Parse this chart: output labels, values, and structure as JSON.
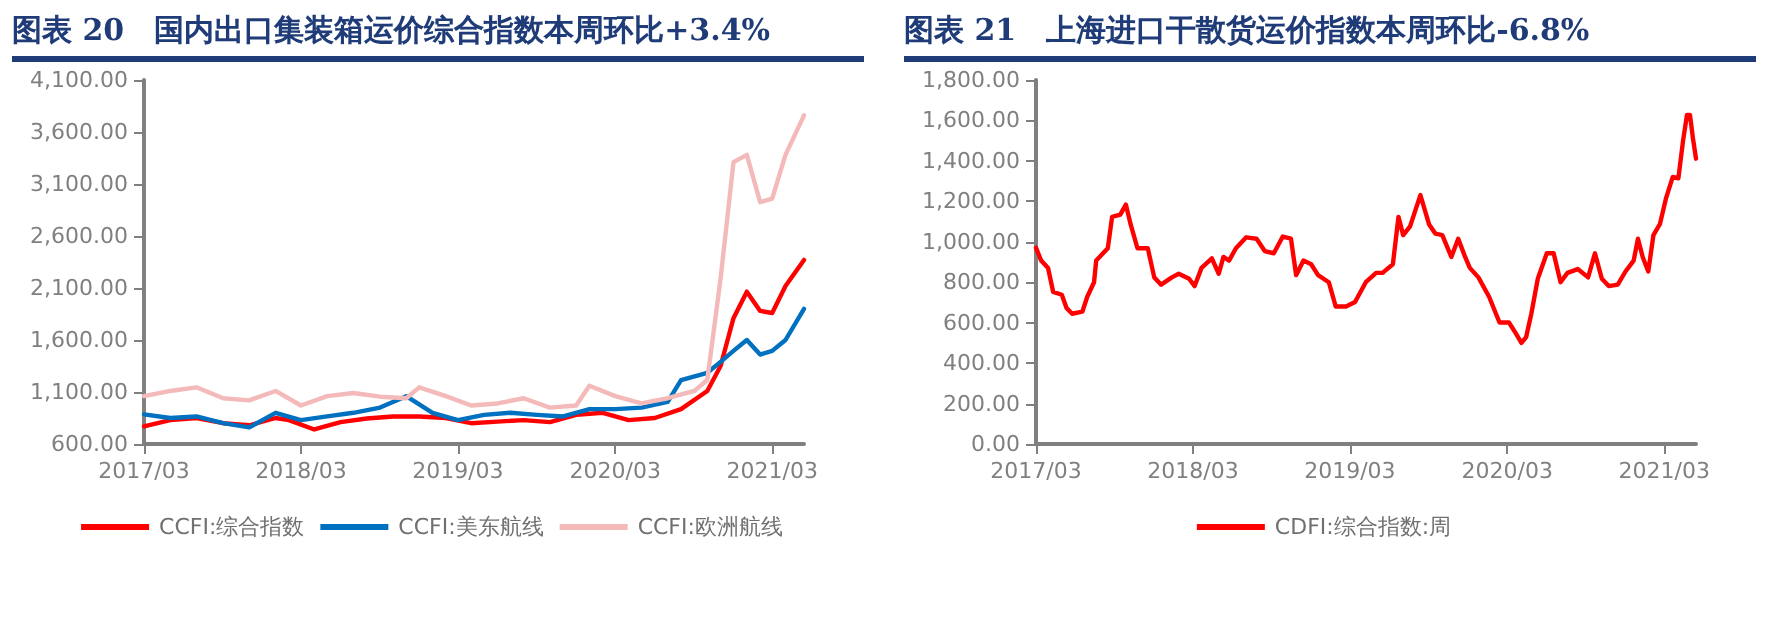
{
  "chart_data": [
    {
      "type": "line",
      "title": "图表 20　国内出口集装箱运价综合指数本周环比+3.4%",
      "legend": "bottom",
      "grid": false,
      "marker": "none",
      "line_style": "solid",
      "xlim": [
        "2017-03-01",
        "2021-05-14"
      ],
      "xticks": [
        {
          "value": "2017-03-01",
          "label": "2017/03"
        },
        {
          "value": "2018-03-01",
          "label": "2018/03"
        },
        {
          "value": "2019-03-01",
          "label": "2019/03"
        },
        {
          "value": "2020-03-01",
          "label": "2020/03"
        },
        {
          "value": "2021-03-01",
          "label": "2021/03"
        }
      ],
      "ylim": [
        600,
        4100
      ],
      "yticks": [
        {
          "value": 600,
          "label": "600.00"
        },
        {
          "value": 1100,
          "label": "1,100.00"
        },
        {
          "value": 1600,
          "label": "1,600.00"
        },
        {
          "value": 2100,
          "label": "2,100.00"
        },
        {
          "value": 2600,
          "label": "2,600.00"
        },
        {
          "value": 3100,
          "label": "3,100.00"
        },
        {
          "value": 3600,
          "label": "3,600.00"
        },
        {
          "value": 4100,
          "label": "4,100.00"
        }
      ],
      "series": [
        {
          "name": "CCFI:综合指数",
          "color": "#ff0000",
          "x": [
            "2017-03-01",
            "2017-05-01",
            "2017-07-01",
            "2017-09-01",
            "2017-11-01",
            "2018-01-01",
            "2018-02-01",
            "2018-04-01",
            "2018-06-01",
            "2018-08-01",
            "2018-10-01",
            "2018-12-01",
            "2019-02-01",
            "2019-04-01",
            "2019-06-01",
            "2019-08-01",
            "2019-10-01",
            "2019-12-01",
            "2020-02-01",
            "2020-04-01",
            "2020-06-01",
            "2020-08-01",
            "2020-10-01",
            "2020-11-01",
            "2020-12-01",
            "2021-01-01",
            "2021-02-01",
            "2021-03-01",
            "2021-04-01",
            "2021-05-14"
          ],
          "values": [
            770,
            830,
            850,
            800,
            780,
            850,
            830,
            740,
            810,
            845,
            865,
            865,
            850,
            800,
            815,
            830,
            810,
            880,
            900,
            830,
            850,
            935,
            1110,
            1350,
            1810,
            2065,
            1880,
            1860,
            2120,
            2370
          ]
        },
        {
          "name": "CCFI:美东航线",
          "color": "#0070c0",
          "x": [
            "2017-03-01",
            "2017-05-01",
            "2017-07-01",
            "2017-09-01",
            "2017-11-01",
            "2018-01-01",
            "2018-03-01",
            "2018-05-01",
            "2018-07-01",
            "2018-09-01",
            "2018-11-01",
            "2019-01-01",
            "2019-03-01",
            "2019-05-01",
            "2019-07-01",
            "2019-09-01",
            "2019-11-01",
            "2020-01-01",
            "2020-03-01",
            "2020-05-01",
            "2020-07-01",
            "2020-08-01",
            "2020-10-01",
            "2020-11-01",
            "2020-12-01",
            "2021-01-01",
            "2021-02-01",
            "2021-03-01",
            "2021-04-01",
            "2021-05-14"
          ],
          "values": [
            885,
            850,
            865,
            800,
            760,
            900,
            830,
            865,
            900,
            950,
            1060,
            900,
            830,
            880,
            900,
            880,
            865,
            935,
            935,
            950,
            1005,
            1215,
            1285,
            1390,
            1495,
            1600,
            1460,
            1495,
            1600,
            1900
          ]
        },
        {
          "name": "CCFI:欧洲航线",
          "color": "#f4b9b9",
          "x": [
            "2017-03-01",
            "2017-05-01",
            "2017-07-01",
            "2017-09-01",
            "2017-11-01",
            "2018-01-01",
            "2018-03-01",
            "2018-05-01",
            "2018-07-01",
            "2018-09-01",
            "2018-11-01",
            "2018-12-01",
            "2019-02-01",
            "2019-04-01",
            "2019-06-01",
            "2019-08-01",
            "2019-10-01",
            "2019-12-01",
            "2020-01-01",
            "2020-03-01",
            "2020-05-01",
            "2020-07-01",
            "2020-09-01",
            "2020-10-01",
            "2020-11-01",
            "2020-12-01",
            "2021-01-01",
            "2021-02-01",
            "2021-03-01",
            "2021-04-01",
            "2021-05-14"
          ],
          "values": [
            1060,
            1110,
            1145,
            1040,
            1020,
            1110,
            970,
            1060,
            1090,
            1055,
            1040,
            1145,
            1060,
            970,
            990,
            1040,
            950,
            970,
            1160,
            1060,
            990,
            1040,
            1110,
            1215,
            2190,
            3310,
            3380,
            2925,
            2960,
            3380,
            3760
          ]
        }
      ]
    },
    {
      "type": "line",
      "title": "图表 21　上海进口干散货运价指数本周环比-6.8%",
      "legend": "bottom",
      "grid": false,
      "marker": "none",
      "line_style": "solid",
      "xlim": [
        "2017-03-01",
        "2021-05-14"
      ],
      "xticks": [
        {
          "value": "2017-03-01",
          "label": "2017/03"
        },
        {
          "value": "2018-03-01",
          "label": "2018/03"
        },
        {
          "value": "2019-03-01",
          "label": "2019/03"
        },
        {
          "value": "2020-03-01",
          "label": "2020/03"
        },
        {
          "value": "2021-03-01",
          "label": "2021/03"
        }
      ],
      "ylim": [
        0,
        1800
      ],
      "yticks": [
        {
          "value": 0,
          "label": "0.00"
        },
        {
          "value": 200,
          "label": "200.00"
        },
        {
          "value": 400,
          "label": "400.00"
        },
        {
          "value": 600,
          "label": "600.00"
        },
        {
          "value": 800,
          "label": "800.00"
        },
        {
          "value": 1000,
          "label": "1,000.00"
        },
        {
          "value": 1200,
          "label": "1,200.00"
        },
        {
          "value": 1400,
          "label": "1,400.00"
        },
        {
          "value": 1600,
          "label": "1,600.00"
        },
        {
          "value": 1800,
          "label": "1,800.00"
        }
      ],
      "series": [
        {
          "name": "CDFI:综合指数:周",
          "color": "#ff0000",
          "x": [
            "2017-03-01",
            "2017-03-13",
            "2017-03-29",
            "2017-04-10",
            "2017-04-30",
            "2017-05-11",
            "2017-05-24",
            "2017-06-17",
            "2017-06-28",
            "2017-07-14",
            "2017-07-19",
            "2017-08-04",
            "2017-08-15",
            "2017-08-25",
            "2017-09-13",
            "2017-09-26",
            "2017-10-07",
            "2017-10-23",
            "2017-11-16",
            "2017-12-01",
            "2017-12-17",
            "2018-01-11",
            "2018-01-27",
            "2018-02-20",
            "2018-03-05",
            "2018-03-21",
            "2018-04-14",
            "2018-04-30",
            "2018-05-11",
            "2018-05-24",
            "2018-06-09",
            "2018-07-03",
            "2018-07-27",
            "2018-08-15",
            "2018-09-05",
            "2018-09-26",
            "2018-10-15",
            "2018-10-27",
            "2018-11-13",
            "2018-12-01",
            "2018-12-17",
            "2019-01-11",
            "2019-01-27",
            "2019-02-20",
            "2019-03-13",
            "2019-04-07",
            "2019-05-01",
            "2019-05-16",
            "2019-06-09",
            "2019-06-22",
            "2019-07-03",
            "2019-07-19",
            "2019-08-12",
            "2019-09-01",
            "2019-09-16",
            "2019-10-02",
            "2019-10-23",
            "2019-11-08",
            "2019-11-24",
            "2019-12-05",
            "2019-12-25",
            "2020-01-19",
            "2020-02-12",
            "2020-03-05",
            "2020-03-21",
            "2020-04-03",
            "2020-04-14",
            "2020-04-26",
            "2020-05-11",
            "2020-06-01",
            "2020-06-17",
            "2020-07-03",
            "2020-07-19",
            "2020-08-12",
            "2020-09-05",
            "2020-09-21",
            "2020-10-07",
            "2020-10-23",
            "2020-11-13",
            "2020-12-01",
            "2020-12-20",
            "2020-12-30",
            "2021-01-10",
            "2021-01-23",
            "2021-02-04",
            "2021-02-19",
            "2021-03-05",
            "2021-03-21",
            "2021-04-03",
            "2021-04-14",
            "2021-04-23",
            "2021-04-30",
            "2021-05-07",
            "2021-05-14"
          ],
          "values": [
            970,
            907,
            870,
            752,
            738,
            673,
            644,
            655,
            727,
            800,
            907,
            943,
            968,
            1123,
            1134,
            1184,
            1087,
            968,
            968,
            824,
            788,
            824,
            842,
            817,
            781,
            871,
            918,
            842,
            925,
            907,
            968,
            1022,
            1015,
            954,
            943,
            1026,
            1015,
            835,
            907,
            889,
            835,
            800,
            680,
            680,
            702,
            800,
            846,
            846,
            889,
            1123,
            1033,
            1076,
            1231,
            1087,
            1040,
            1033,
            925,
            1015,
            925,
            871,
            824,
            727,
            601,
            601,
            547,
            500,
            529,
            644,
            817,
            943,
            943,
            800,
            846,
            865,
            824,
            943,
            817,
            781,
            788,
            853,
            907,
            1015,
            925,
            853,
            1033,
            1087,
            1213,
            1321,
            1314,
            1501,
            1627,
            1627,
            1510,
            1411
          ]
        }
      ]
    }
  ]
}
